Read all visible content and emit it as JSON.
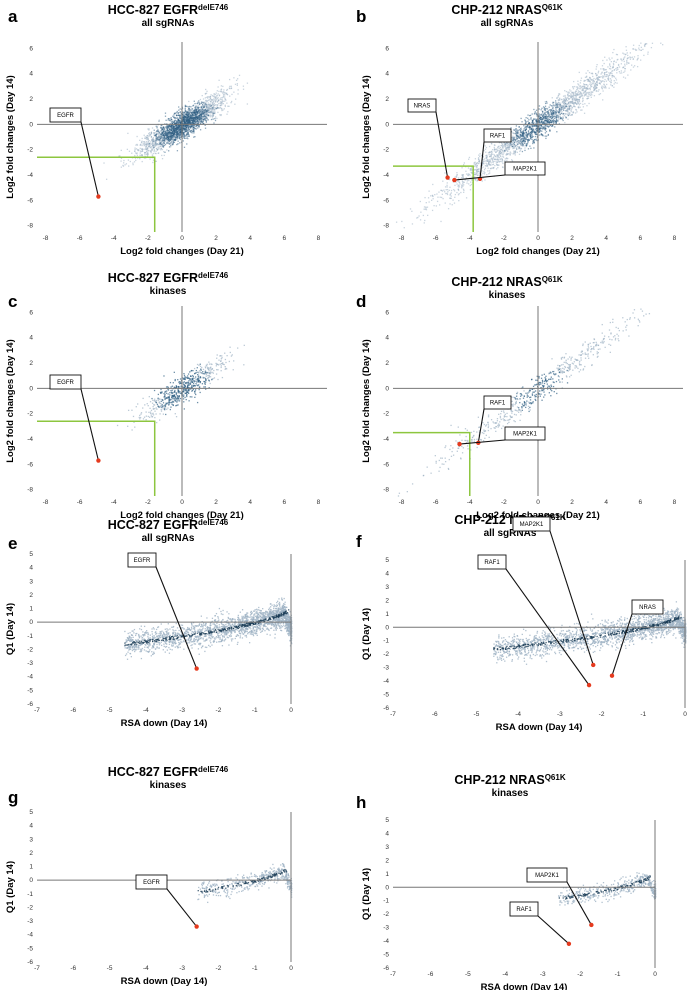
{
  "colors": {
    "point": "#2f5f83",
    "point_light": "#9fb3c4",
    "highlight": "#e53a1e",
    "threshold": "#8dc63f",
    "axis": "#777777",
    "curve": "#1d3e59"
  },
  "chart_data": [
    {
      "letter": "a",
      "type": "scatter",
      "title": "HCC-827 EGFR",
      "title_sup": "delE746",
      "subtitle": "all sgRNAs",
      "xlabel": "Log2 fold changes (Day 21)",
      "ylabel": "Log2 fold changes (Day 14)",
      "xlim": [
        -8.5,
        8.5
      ],
      "ylim": [
        -8.5,
        6.5
      ],
      "xticks": [
        -8,
        -6,
        -4,
        -2,
        0,
        2,
        4,
        6,
        8
      ],
      "yticks": [
        -8,
        -6,
        -4,
        -2,
        0,
        2,
        4,
        6
      ],
      "thresholds": {
        "x": -1.6,
        "y": -2.6
      },
      "highlights": [
        {
          "name": "EGFR",
          "x": -4.9,
          "y": -5.7
        }
      ]
    },
    {
      "letter": "b",
      "type": "scatter",
      "title": "CHP-212 NRAS",
      "title_sup": "Q61K",
      "subtitle": "all sgRNAs",
      "xlabel": "Log2 fold changes (Day 21)",
      "ylabel": "Log2 fold changes (Day 14)",
      "xlim": [
        -8.5,
        8.5
      ],
      "ylim": [
        -8.5,
        6.5
      ],
      "xticks": [
        -8,
        -6,
        -4,
        -2,
        0,
        2,
        4,
        6,
        8
      ],
      "yticks": [
        -8,
        -6,
        -4,
        -2,
        0,
        2,
        4,
        6
      ],
      "thresholds": {
        "x": -3.8,
        "y": -3.3
      },
      "highlights": [
        {
          "name": "NRAS",
          "x": -5.3,
          "y": -4.2
        },
        {
          "name": "RAF1",
          "x": -3.4,
          "y": -4.3
        },
        {
          "name": "MAP2K1",
          "x": -4.9,
          "y": -4.4
        }
      ]
    },
    {
      "letter": "c",
      "type": "scatter",
      "title": "HCC-827 EGFR",
      "title_sup": "delE746",
      "subtitle": "kinases",
      "xlabel": "Log2 fold changes (Day 21)",
      "ylabel": "Log2 fold changes (Day 14)",
      "xlim": [
        -8.5,
        8.5
      ],
      "ylim": [
        -8.5,
        6.5
      ],
      "xticks": [
        -8,
        -6,
        -4,
        -2,
        0,
        2,
        4,
        6,
        8
      ],
      "yticks": [
        -8,
        -6,
        -4,
        -2,
        0,
        2,
        4,
        6
      ],
      "thresholds": {
        "x": -1.6,
        "y": -2.6
      },
      "highlights": [
        {
          "name": "EGFR",
          "x": -4.9,
          "y": -5.7
        }
      ]
    },
    {
      "letter": "d",
      "type": "scatter",
      "title": "CHP-212 NRAS",
      "title_sup": "Q61K",
      "subtitle": "kinases",
      "xlabel": "Log2 fold changes (Day 21)",
      "ylabel": "Log2 fold changes (Day 14)",
      "xlim": [
        -8.5,
        8.5
      ],
      "ylim": [
        -8.5,
        6.5
      ],
      "xticks": [
        -8,
        -6,
        -4,
        -2,
        0,
        2,
        4,
        6,
        8
      ],
      "yticks": [
        -8,
        -6,
        -4,
        -2,
        0,
        2,
        4,
        6
      ],
      "thresholds": {
        "x": -4.0,
        "y": -3.5
      },
      "highlights": [
        {
          "name": "RAF1",
          "x": -3.5,
          "y": -4.3
        },
        {
          "name": "MAP2K1",
          "x": -4.6,
          "y": -4.4
        }
      ]
    },
    {
      "letter": "e",
      "type": "scatter",
      "title": "HCC-827 EGFR",
      "title_sup": "delE746",
      "subtitle": "all sgRNAs",
      "xlabel": "RSA down (Day 14)",
      "ylabel": "Q1 (Day 14)",
      "xlim": [
        -7,
        0
      ],
      "ylim": [
        -6,
        5
      ],
      "xticks": [
        -7,
        -6,
        -5,
        -4,
        -3,
        -2,
        -1,
        0
      ],
      "yticks": [
        -6,
        -5,
        -4,
        -3,
        -2,
        -1,
        0,
        1,
        2,
        3,
        4,
        5
      ],
      "highlights": [
        {
          "name": "EGFR",
          "x": -2.6,
          "y": -3.4
        }
      ]
    },
    {
      "letter": "f",
      "type": "scatter",
      "title": "CHP-212 NRAS",
      "title_sup": "Q61K",
      "subtitle": "all sgRNAs",
      "xlabel": "RSA down (Day 14)",
      "ylabel": "Q1 (Day 14)",
      "xlim": [
        -7,
        0
      ],
      "ylim": [
        -6,
        5
      ],
      "xticks": [
        -7,
        -6,
        -5,
        -4,
        -3,
        -2,
        -1,
        0
      ],
      "yticks": [
        -6,
        -5,
        -4,
        -3,
        -2,
        -1,
        0,
        1,
        2,
        3,
        4,
        5
      ],
      "highlights": [
        {
          "name": "MAP2K1",
          "x": -2.2,
          "y": -2.8
        },
        {
          "name": "RAF1",
          "x": -2.3,
          "y": -4.3
        },
        {
          "name": "NRAS",
          "x": -1.75,
          "y": -3.6
        }
      ]
    },
    {
      "letter": "g",
      "type": "scatter",
      "title": "HCC-827 EGFR",
      "title_sup": "delE746",
      "subtitle": "kinases",
      "xlabel": "RSA down (Day 14)",
      "ylabel": "Q1 (Day 14)",
      "xlim": [
        -7,
        0
      ],
      "ylim": [
        -6,
        5
      ],
      "xticks": [
        -7,
        -6,
        -5,
        -4,
        -3,
        -2,
        -1,
        0
      ],
      "yticks": [
        -6,
        -5,
        -4,
        -3,
        -2,
        -1,
        0,
        1,
        2,
        3,
        4,
        5
      ],
      "highlights": [
        {
          "name": "EGFR",
          "x": -2.6,
          "y": -3.4
        }
      ]
    },
    {
      "letter": "h",
      "type": "scatter",
      "title": "CHP-212 NRAS",
      "title_sup": "Q61K",
      "subtitle": "kinases",
      "xlabel": "RSA down (Day 14)",
      "ylabel": "Q1 (Day 14)",
      "xlim": [
        -7,
        0
      ],
      "ylim": [
        -6,
        5
      ],
      "xticks": [
        -7,
        -6,
        -5,
        -4,
        -3,
        -2,
        -1,
        0
      ],
      "yticks": [
        -6,
        -5,
        -4,
        -3,
        -2,
        -1,
        0,
        1,
        2,
        3,
        4,
        5
      ],
      "highlights": [
        {
          "name": "MAP2K1",
          "x": -1.7,
          "y": -2.8
        },
        {
          "name": "RAF1",
          "x": -2.3,
          "y": -4.2
        }
      ]
    }
  ]
}
